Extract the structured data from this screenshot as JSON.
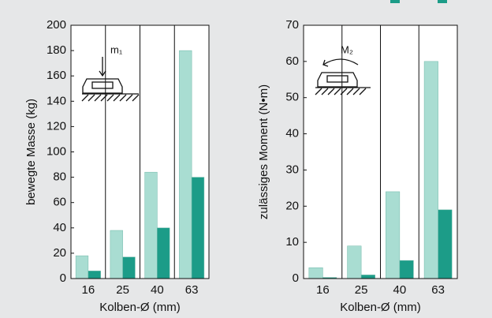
{
  "chart_data": [
    {
      "type": "bar",
      "ylabel": "bewegte Masse (kg)",
      "xlabel": "Kolben-Ø (mm)",
      "annotation": "m₁",
      "categories": [
        "16",
        "25",
        "40",
        "63"
      ],
      "series": [
        {
          "color": "#a9ddd2",
          "values": [
            18,
            38,
            84,
            180
          ]
        },
        {
          "color": "#1c9c88",
          "values": [
            6,
            17,
            40,
            80
          ]
        }
      ],
      "ylim": [
        0,
        200
      ],
      "yticks": [
        0,
        20,
        40,
        60,
        80,
        100,
        120,
        140,
        160,
        180,
        200
      ]
    },
    {
      "type": "bar",
      "ylabel": "zulässiges Moment (N•m)",
      "xlabel": "Kolben-Ø (mm)",
      "annotation": "M₂",
      "categories": [
        "16",
        "25",
        "40",
        "63"
      ],
      "series": [
        {
          "color": "#a9ddd2",
          "values": [
            3,
            9,
            24,
            60
          ]
        },
        {
          "color": "#1c9c88",
          "values": [
            0.3,
            1,
            5,
            19
          ]
        }
      ],
      "ylim": [
        0,
        70
      ],
      "yticks": [
        0,
        10,
        20,
        30,
        40,
        50,
        60,
        70
      ]
    }
  ]
}
